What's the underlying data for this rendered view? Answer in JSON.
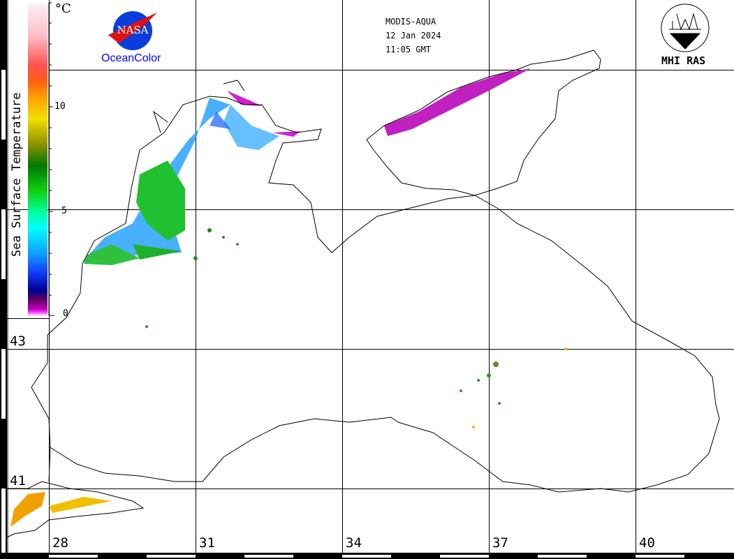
{
  "header": {
    "sensor": "MODIS-AQUA",
    "date": "12 Jan 2024",
    "time": "11:05 GMT"
  },
  "logos": {
    "nasa_text": "NASA",
    "oceancolor": "OceanColor",
    "mhi": "MHI RAS"
  },
  "legend": {
    "title": "Sea Surface Temperature",
    "unit": "°C",
    "ticks": [
      "10",
      "5",
      "0"
    ],
    "range": [
      0,
      14
    ]
  },
  "axes": {
    "latitudes": [
      "43",
      "41"
    ],
    "longitudes": [
      "28",
      "31",
      "34",
      "37",
      "40"
    ]
  },
  "colors": {
    "coast": "#000000",
    "ocean_color_text": "#0000ff"
  }
}
